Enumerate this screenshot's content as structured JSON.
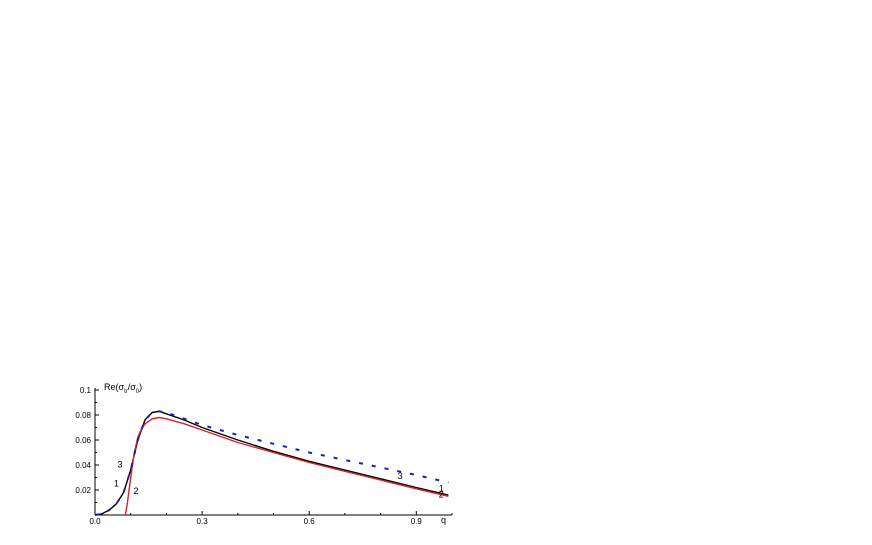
{
  "chart_data": {
    "type": "line",
    "title": "",
    "ylabel": {
      "base": "Re(σ",
      "sub1": "tr",
      "mid": "/σ",
      "sub2": "0",
      "end": ")"
    },
    "xlabel": "q",
    "xlim": [
      0,
      1.0
    ],
    "ylim": [
      0,
      0.1
    ],
    "x_ticks": [
      {
        "value": 0.0,
        "label": "0.0"
      },
      {
        "value": 0.3,
        "label": "0.3"
      },
      {
        "value": 0.6,
        "label": "0.6"
      },
      {
        "value": 0.9,
        "label": "0.9"
      }
    ],
    "y_ticks": [
      {
        "value": 0.02,
        "label": "0.02"
      },
      {
        "value": 0.04,
        "label": "0.04"
      },
      {
        "value": 0.06,
        "label": "0.06"
      },
      {
        "value": 0.08,
        "label": "0.08"
      },
      {
        "value": 0.1,
        "label": "0.1"
      }
    ],
    "grid": false,
    "series": [
      {
        "name": "1",
        "color": "#000000",
        "dashed": false,
        "x": [
          0.0,
          0.02,
          0.04,
          0.06,
          0.08,
          0.1,
          0.12,
          0.14,
          0.16,
          0.18,
          0.2,
          0.25,
          0.3,
          0.4,
          0.5,
          0.6,
          0.7,
          0.8,
          0.9,
          0.99
        ],
        "y": [
          0.0,
          0.001,
          0.004,
          0.009,
          0.018,
          0.036,
          0.06,
          0.076,
          0.082,
          0.083,
          0.081,
          0.076,
          0.07,
          0.06,
          0.051,
          0.043,
          0.036,
          0.029,
          0.022,
          0.016
        ]
      },
      {
        "name": "2",
        "color": "#e02020",
        "dashed": false,
        "x": [
          0.085,
          0.09,
          0.1,
          0.11,
          0.12,
          0.13,
          0.14,
          0.16,
          0.18,
          0.2,
          0.25,
          0.3,
          0.4,
          0.5,
          0.6,
          0.7,
          0.8,
          0.9,
          0.99
        ],
        "y": [
          0.0,
          0.008,
          0.03,
          0.05,
          0.062,
          0.069,
          0.073,
          0.077,
          0.078,
          0.077,
          0.073,
          0.068,
          0.058,
          0.05,
          0.042,
          0.035,
          0.028,
          0.021,
          0.015
        ]
      },
      {
        "name": "3",
        "color": "#1020c0",
        "dashed": true,
        "x": [
          0.0,
          0.02,
          0.04,
          0.06,
          0.08,
          0.1,
          0.12,
          0.14,
          0.16,
          0.18,
          0.2,
          0.25,
          0.3,
          0.4,
          0.5,
          0.6,
          0.7,
          0.8,
          0.9,
          0.99
        ],
        "y": [
          0.0,
          0.001,
          0.004,
          0.009,
          0.018,
          0.036,
          0.06,
          0.076,
          0.082,
          0.083,
          0.082,
          0.077,
          0.072,
          0.064,
          0.057,
          0.05,
          0.044,
          0.038,
          0.032,
          0.026
        ]
      }
    ],
    "curve_labels": [
      {
        "text": "1",
        "x": 0.06,
        "y": 0.023
      },
      {
        "text": "2",
        "x": 0.115,
        "y": 0.017
      },
      {
        "text": "3",
        "x": 0.07,
        "y": 0.038
      },
      {
        "text": "3",
        "x": 0.855,
        "y": 0.029
      },
      {
        "text": "1",
        "x": 0.97,
        "y": 0.019
      },
      {
        "text": "2",
        "x": 0.97,
        "y": 0.014
      }
    ]
  }
}
